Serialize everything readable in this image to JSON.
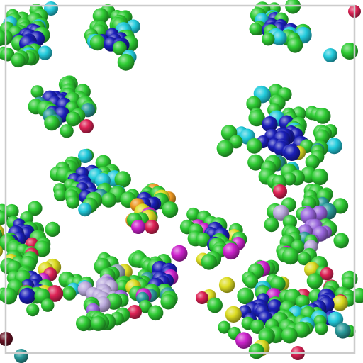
{
  "scene": {
    "description_kind": "rendered-molecular-particles",
    "background": "#ffffff",
    "frame_color": "#cccccc",
    "palette": {
      "green": "#2ecc33",
      "blue": "#1a1fb8",
      "cyan": "#22ccdd",
      "teal": "#2a9a9a",
      "magenta": "#cc22cc",
      "purple": "#9966dd",
      "red": "#dd2255",
      "yellow": "#dddd22",
      "orange": "#ee9922",
      "lavender": "#bbaadd",
      "gray": "#99aabb",
      "darkred": "#661122"
    }
  }
}
